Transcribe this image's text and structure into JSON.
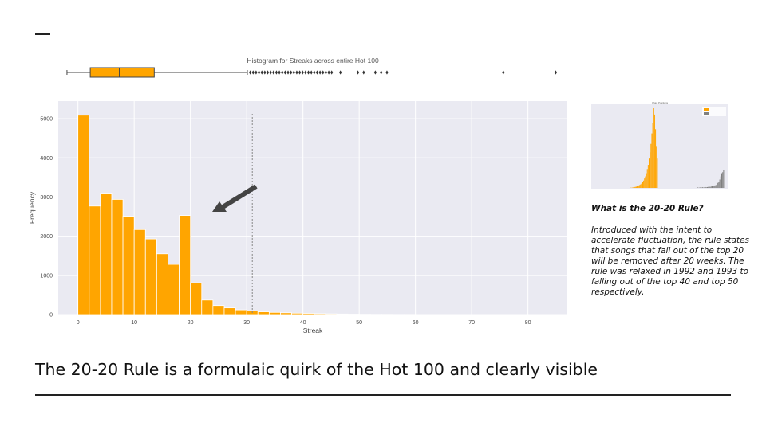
{
  "slide": {
    "headline": "The 20-20 Rule is a formulaic quirk of the Hot 100 and clearly visible",
    "side_question": "What is the 20-20 Rule?",
    "side_body": "Introduced with the intent to accelerate fluctuation, the rule states that songs that fall out of the top 20 will be removed after 20 weeks. The rule was relaxed in 1992 and 1993 to falling out of the top 40 and top 50 respectively."
  },
  "colors": {
    "accent": "#FFA500",
    "plot_bg": "#EAEAF2",
    "arrow": "#444444",
    "outlier": "#333333",
    "grey_bars": "#808080"
  },
  "chart_data": [
    {
      "type": "box",
      "title": "Histogram for Streaks across entire Hot 100",
      "whisker_low": 0,
      "q1": 4,
      "median": 9,
      "q3": 15,
      "whisker_high": 31,
      "outliers": [
        31.5,
        32,
        32.5,
        33,
        33.5,
        34,
        34.5,
        35,
        35.5,
        36,
        36.5,
        37,
        37.5,
        38,
        38.5,
        39,
        39.5,
        40,
        40.5,
        41,
        41.5,
        42,
        42.5,
        43,
        43.5,
        44,
        44.5,
        45,
        45.5,
        47,
        50,
        51,
        53,
        54,
        55,
        75,
        84
      ],
      "xlim": [
        -1.5,
        86
      ]
    },
    {
      "type": "bar",
      "xlabel": "Streak",
      "ylabel": "Frequency",
      "bin_width": 2,
      "bin_starts": [
        0,
        2,
        4,
        6,
        8,
        10,
        12,
        14,
        16,
        18,
        20,
        22,
        24,
        26,
        28,
        30,
        32,
        34,
        36,
        38,
        40,
        42,
        44,
        46,
        48,
        50,
        52,
        54,
        56,
        58
      ],
      "values": [
        5090,
        2770,
        3100,
        2940,
        2510,
        2170,
        1930,
        1550,
        1280,
        2530,
        810,
        370,
        230,
        170,
        120,
        90,
        70,
        55,
        45,
        35,
        30,
        22,
        18,
        14,
        10,
        8,
        6,
        5,
        4,
        3
      ],
      "xticks": [
        0,
        10,
        20,
        30,
        40,
        50,
        60,
        70,
        80
      ],
      "yticks": [
        0,
        1000,
        2000,
        3000,
        4000,
        5000
      ],
      "xlim": [
        -3.5,
        87
      ],
      "ylim": [
        0,
        5450
      ],
      "vline_x": 31,
      "annotation": "arrow pointing at 20-week bar",
      "grid": true
    },
    {
      "type": "bar",
      "title": "Chart Positions",
      "legend_placement": "top-right",
      "series": [
        {
          "name": "Orange series",
          "color": "#FFA500",
          "values": [
            1,
            1,
            2,
            3,
            4,
            5,
            6,
            8,
            10,
            12,
            15,
            18,
            22,
            28,
            35,
            45,
            55,
            70,
            90,
            110,
            140,
            170,
            210,
            260,
            310,
            380,
            350,
            280,
            200,
            140
          ]
        },
        {
          "name": "Grey series",
          "color": "#808080",
          "values": [
            2,
            1,
            2,
            3,
            2,
            3,
            2,
            3,
            4,
            3,
            4,
            5,
            6,
            5,
            7,
            8,
            9,
            10,
            12,
            14,
            18,
            24,
            30,
            40,
            55,
            70,
            75,
            85
          ]
        }
      ]
    }
  ]
}
